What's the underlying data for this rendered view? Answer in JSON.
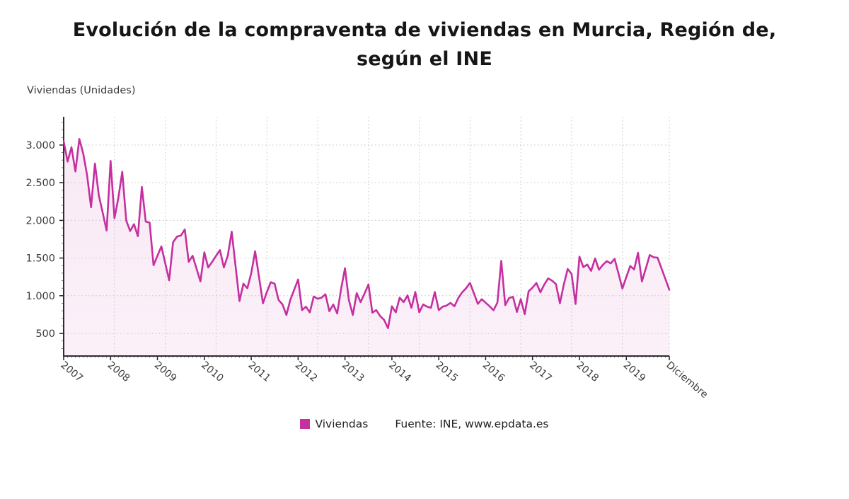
{
  "page": {
    "background": "#ffffff"
  },
  "title": {
    "line1": "Evolución de la compraventa de viviendas en Murcia, Región de,",
    "line2": "según el INE"
  },
  "axis_unit_label": "Viviendas (Unidades)",
  "legend": {
    "series_label": "Viviendas",
    "swatch_color": "#c52f9f"
  },
  "source": "Fuente: INE, www.epdata.es",
  "chart_data": {
    "type": "area",
    "title": "Evolución de la compraventa de viviendas en Murcia, Región de, según el INE",
    "series_name": "Viviendas",
    "ylabel": "Viviendas (Unidades)",
    "start_month": "2007-01",
    "end_month": "2019-12",
    "x_tick_labels": [
      "2007",
      "2008",
      "2009",
      "2010",
      "2011",
      "2012",
      "2013",
      "2014",
      "2015",
      "2016",
      "2017",
      "2018",
      "2019",
      "Diciembre"
    ],
    "y_tick_labels": [
      "500",
      "1.000",
      "1.500",
      "2.000",
      "2.500",
      "3.000"
    ],
    "y_tick_values": [
      500,
      1000,
      1500,
      2000,
      2500,
      3000
    ],
    "y_axis_min": 200,
    "y_axis_max": 3375,
    "grid": "dotted",
    "legend_position": "bottom",
    "line_color": "#c52f9f",
    "fill_color_top": "rgba(197,47,159,0.11)",
    "fill_color_bottom": "rgba(197,47,159,0.07)",
    "values": [
      3050,
      2780,
      2970,
      2650,
      3080,
      2890,
      2600,
      2175,
      2755,
      2330,
      2100,
      1865,
      2790,
      2030,
      2300,
      2645,
      2000,
      1860,
      1950,
      1790,
      2445,
      1985,
      1970,
      1405,
      1530,
      1655,
      1430,
      1205,
      1710,
      1785,
      1800,
      1880,
      1450,
      1530,
      1360,
      1190,
      1575,
      1375,
      1450,
      1530,
      1605,
      1375,
      1530,
      1850,
      1390,
      930,
      1160,
      1100,
      1300,
      1590,
      1250,
      900,
      1050,
      1180,
      1160,
      945,
      885,
      745,
      945,
      1080,
      1215,
      810,
      855,
      780,
      990,
      960,
      975,
      1020,
      795,
      885,
      765,
      1090,
      1365,
      945,
      745,
      1035,
      915,
      1030,
      1150,
      775,
      810,
      730,
      680,
      570,
      860,
      780,
      975,
      915,
      1005,
      840,
      1050,
      780,
      885,
      855,
      840,
      1050,
      810,
      855,
      870,
      905,
      860,
      970,
      1046,
      1100,
      1170,
      1031,
      892,
      954,
      907,
      860,
      808,
      907,
      1463,
      875,
      970,
      985,
      785,
      955,
      755,
      1060,
      1108,
      1170,
      1045,
      1150,
      1230,
      1200,
      1155,
      900,
      1150,
      1355,
      1290,
      890,
      1520,
      1380,
      1415,
      1330,
      1495,
      1345,
      1410,
      1460,
      1430,
      1490,
      1295,
      1095,
      1250,
      1395,
      1350,
      1570,
      1190,
      1365,
      1540,
      1510,
      1505,
      1363,
      1222,
      1080
    ]
  }
}
